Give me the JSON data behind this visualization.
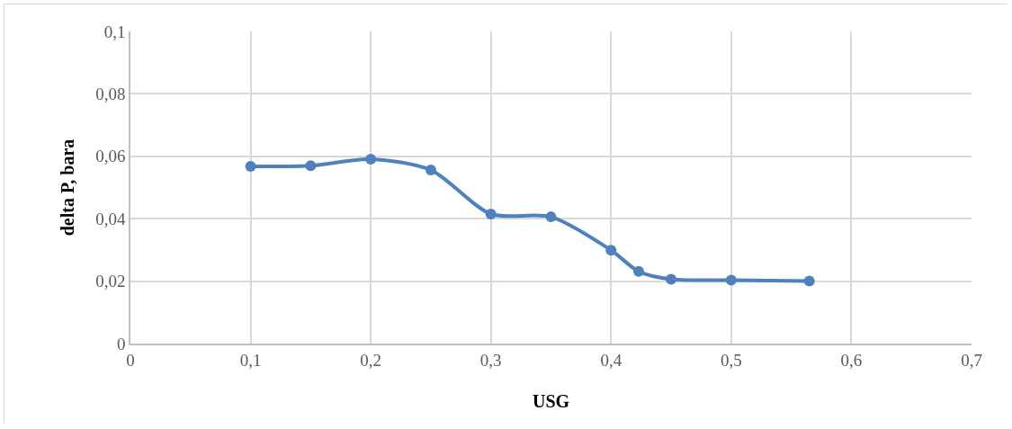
{
  "chart_data": {
    "type": "line",
    "xlabel": "USG",
    "ylabel": "delta P, bara",
    "x": [
      0.1,
      0.15,
      0.2,
      0.25,
      0.3,
      0.35,
      0.4,
      0.423,
      0.45,
      0.5,
      0.565
    ],
    "series": [
      {
        "color": "#4f81bd",
        "values": [
          0.0568,
          0.057,
          0.0591,
          0.0556,
          0.0415,
          0.0406,
          0.0299,
          0.0231,
          0.0206,
          0.0203,
          0.02
        ]
      }
    ],
    "xlim": [
      0,
      0.7
    ],
    "ylim": [
      0,
      0.1
    ],
    "xticks": [
      0,
      {
        "value": 0.1,
        "label": "0,1"
      },
      {
        "value": 0.2,
        "label": "0,2"
      },
      {
        "value": 0.3,
        "label": "0,3"
      },
      {
        "value": 0.4,
        "label": "0,4"
      },
      {
        "value": 0.5,
        "label": "0,5"
      },
      {
        "value": 0.6,
        "label": "0,6"
      },
      {
        "value": 0.7,
        "label": "0,7"
      }
    ],
    "yticks": [
      0,
      {
        "value": 0.02,
        "label": "0,02"
      },
      {
        "value": 0.04,
        "label": "0,04"
      },
      {
        "value": 0.06,
        "label": "0,06"
      },
      {
        "value": 0.08,
        "label": "0,08"
      },
      {
        "value": 0.1,
        "label": "0,1"
      }
    ],
    "grid": true,
    "marker": "circle",
    "line_style": "solid"
  }
}
